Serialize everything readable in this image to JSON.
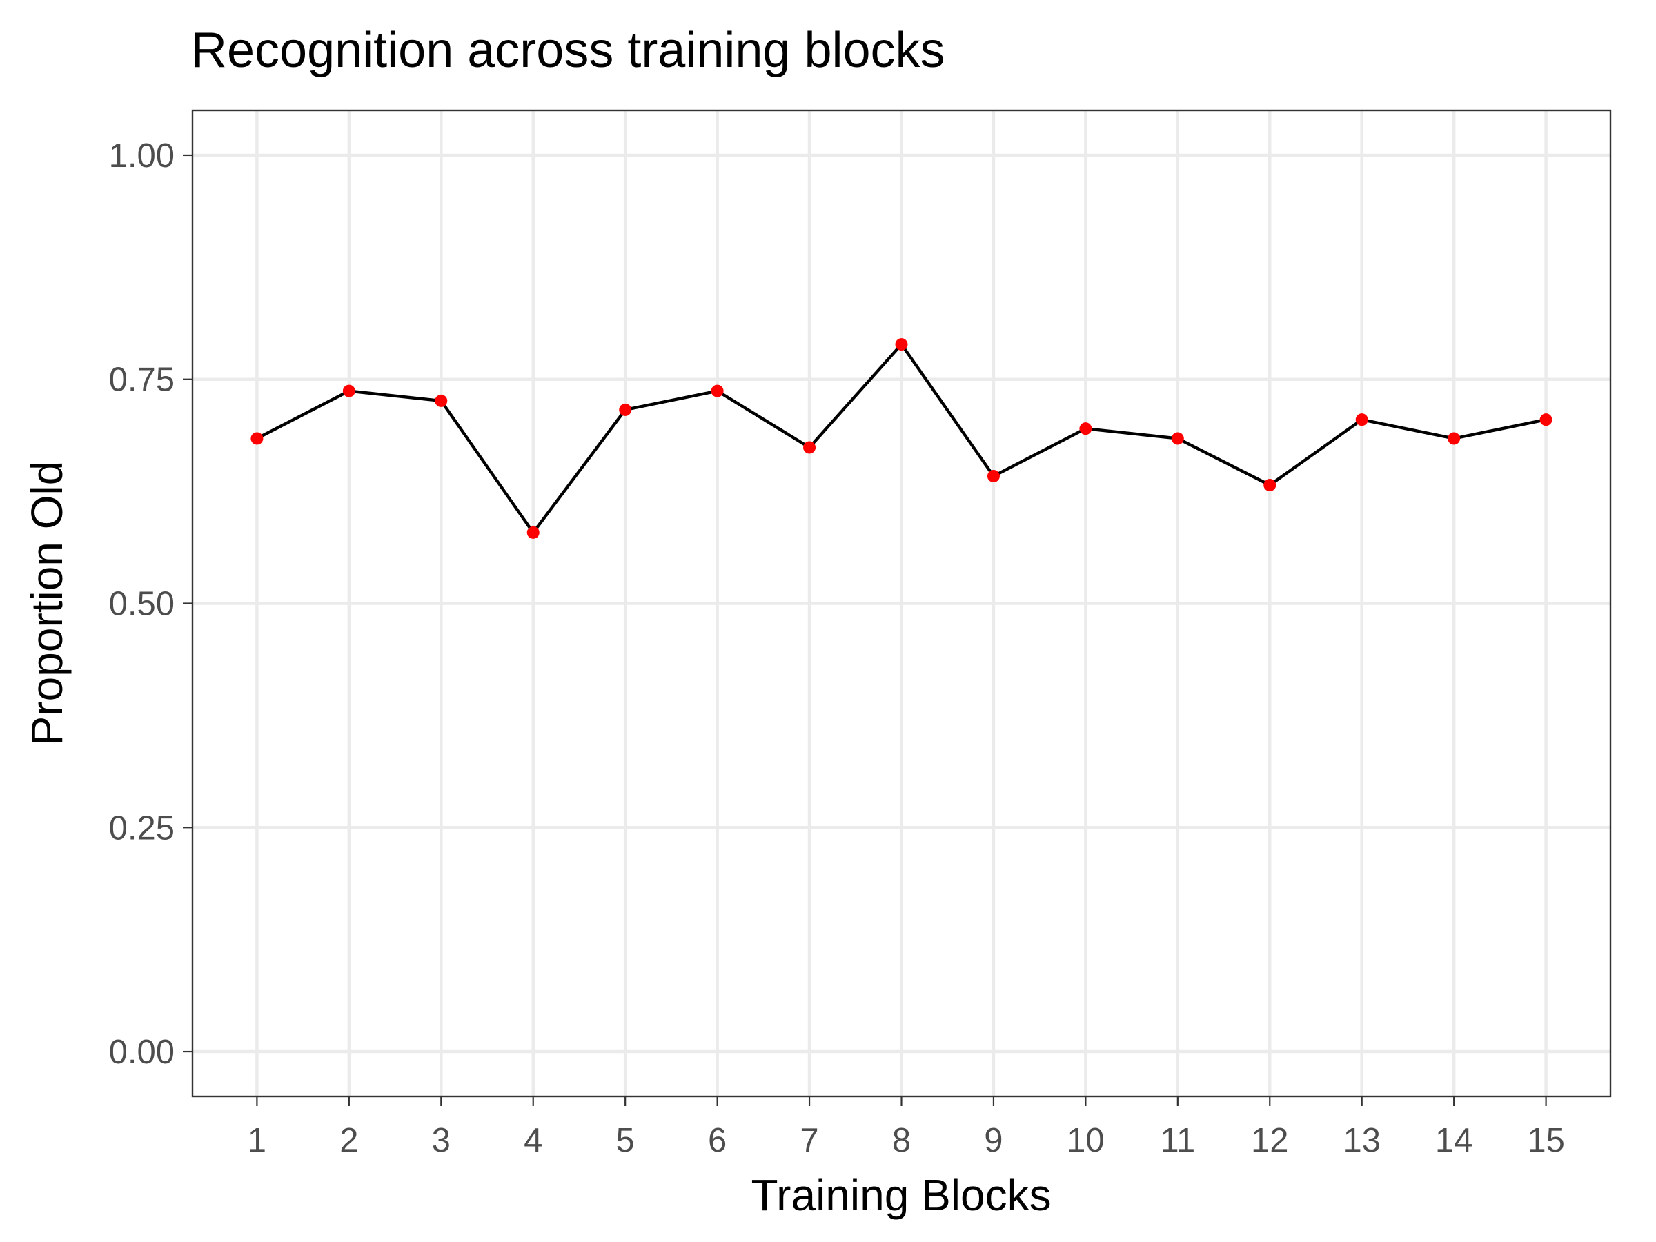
{
  "chart_data": {
    "type": "line",
    "title": "Recognition across training blocks",
    "xlabel": "Training Blocks",
    "ylabel": "Proportion Old",
    "x": [
      1,
      2,
      3,
      4,
      5,
      6,
      7,
      8,
      9,
      10,
      11,
      12,
      13,
      14,
      15
    ],
    "values": [
      0.684,
      0.737,
      0.726,
      0.579,
      0.716,
      0.737,
      0.674,
      0.789,
      0.642,
      0.695,
      0.684,
      0.632,
      0.705,
      0.684,
      0.705
    ],
    "xticks": [
      "1",
      "2",
      "3",
      "4",
      "5",
      "6",
      "7",
      "8",
      "9",
      "10",
      "11",
      "12",
      "13",
      "14",
      "15"
    ],
    "yticks": [
      0,
      0.25,
      0.5,
      0.75,
      1
    ],
    "ytick_labels": [
      "0.00",
      "0.25",
      "0.50",
      "0.75",
      "1.00"
    ],
    "xlim": [
      0.3,
      15.7
    ],
    "ylim": [
      -0.05,
      1.05
    ],
    "grid": true,
    "legend": "none",
    "colors": {
      "line": "#000000",
      "points": "#ff0000",
      "grid": "#ebebeb",
      "background": "#ffffff",
      "border": "#333333"
    }
  }
}
